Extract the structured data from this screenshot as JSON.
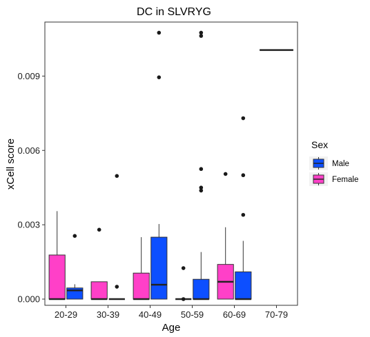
{
  "chart_data": {
    "type": "box",
    "title": "DC in SLVRYG",
    "xlabel": "Age",
    "ylabel": "xCell score",
    "categories": [
      "20-29",
      "30-39",
      "40-49",
      "50-59",
      "60-69",
      "70-79"
    ],
    "y_ticks": [
      "0.000",
      "0.003",
      "0.006",
      "0.009"
    ],
    "y_tick_values": [
      0,
      0.003,
      0.006,
      0.009
    ],
    "ylim": [
      -0.00025,
      0.01118
    ],
    "legend": {
      "title": "Sex",
      "position": "right",
      "entries": [
        {
          "label": "Male",
          "color": "#0D4FFF"
        },
        {
          "label": "Female",
          "color": "#FF40C8"
        }
      ]
    },
    "groups": [
      {
        "category": "20-29",
        "sex": "Female",
        "color": "#FF40C8",
        "whisker_low": 0,
        "q1": 0,
        "median": 0,
        "q3": 0.00178,
        "whisker_high": 0.00355,
        "outliers": []
      },
      {
        "category": "20-29",
        "sex": "Male",
        "color": "#0D4FFF",
        "whisker_low": 0,
        "q1": 0,
        "median": 0.00035,
        "q3": 0.00045,
        "whisker_high": 0.0006,
        "outliers": [
          0.00255
        ]
      },
      {
        "category": "30-39",
        "sex": "Female",
        "color": "#FF40C8",
        "whisker_low": 0,
        "q1": 0,
        "median": 0,
        "q3": 0.0007,
        "whisker_high": 0.0007,
        "outliers": [
          0.0028
        ]
      },
      {
        "category": "30-39",
        "sex": "Male",
        "color": "#0D4FFF",
        "whisker_low": 0,
        "q1": 0,
        "median": 0,
        "q3": 0,
        "whisker_high": 0,
        "outliers": [
          0.0005,
          0.00497
        ]
      },
      {
        "category": "40-49",
        "sex": "Female",
        "color": "#FF40C8",
        "whisker_low": 0,
        "q1": 0,
        "median": 0,
        "q3": 0.00105,
        "whisker_high": 0.0025,
        "outliers": []
      },
      {
        "category": "40-49",
        "sex": "Male",
        "color": "#0D4FFF",
        "whisker_low": 0,
        "q1": 0,
        "median": 0.00058,
        "q3": 0.0025,
        "whisker_high": 0.00303,
        "outliers": [
          0.00895,
          0.01075
        ]
      },
      {
        "category": "50-59",
        "sex": "Female",
        "color": "#FF40C8",
        "whisker_low": 0,
        "q1": 0,
        "median": 0,
        "q3": 0,
        "whisker_high": 0,
        "outliers": [
          0.00125,
          0
        ]
      },
      {
        "category": "50-59",
        "sex": "Male",
        "color": "#0D4FFF",
        "whisker_low": 0,
        "q1": 0,
        "median": 0,
        "q3": 0.0008,
        "whisker_high": 0.0019,
        "outliers": [
          0.00438,
          0.0045,
          0.00525,
          0.01062,
          0.01075
        ]
      },
      {
        "category": "60-69",
        "sex": "Female",
        "color": "#FF40C8",
        "whisker_low": 0,
        "q1": 0,
        "median": 0.0007,
        "q3": 0.0014,
        "whisker_high": 0.0029,
        "outliers": [
          0.00505
        ]
      },
      {
        "category": "60-69",
        "sex": "Male",
        "color": "#0D4FFF",
        "whisker_low": 0,
        "q1": 0,
        "median": 0,
        "q3": 0.0011,
        "whisker_high": 0.00235,
        "outliers": [
          0.0034,
          0.005,
          0.0073
        ]
      },
      {
        "category": "70-79",
        "sex": "Male",
        "color": "#0D4FFF",
        "whisker_low": 0.01005,
        "q1": 0.01005,
        "median": 0.01005,
        "q3": 0.01005,
        "whisker_high": 0.01005,
        "outliers": [],
        "full_width": true
      }
    ]
  }
}
